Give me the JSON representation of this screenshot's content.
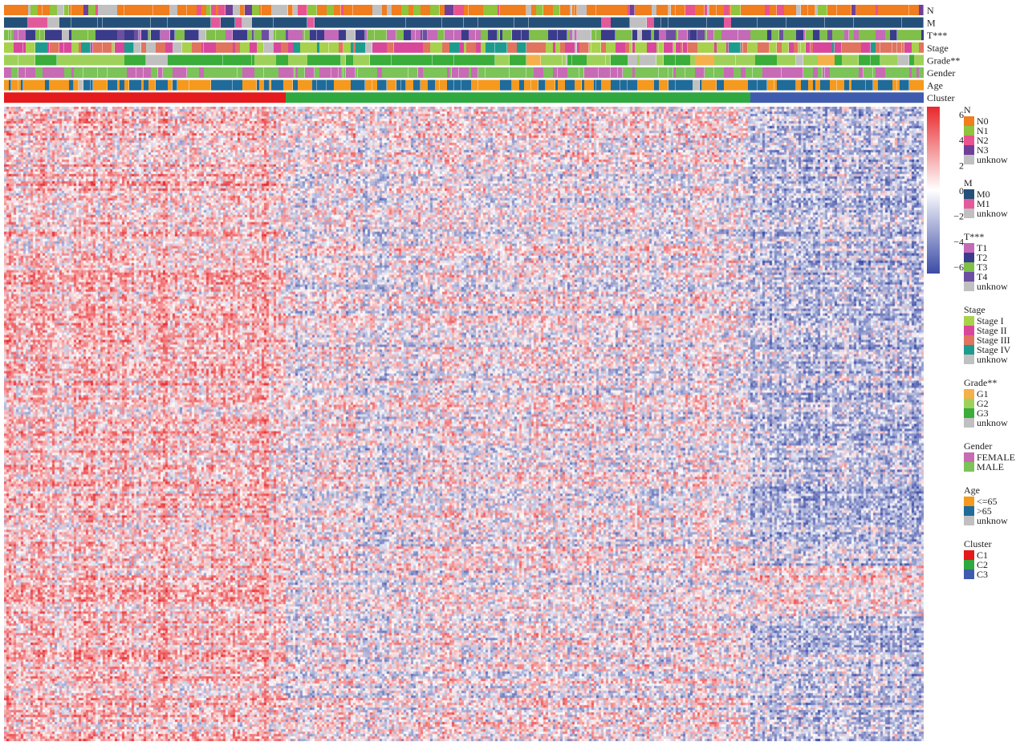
{
  "chart_data": {
    "type": "heatmap",
    "title": "",
    "xlabel": "",
    "ylabel": "",
    "color_scale": {
      "min": -6,
      "max": 6,
      "ticks": [
        "6",
        "4",
        "2",
        "0",
        "−2",
        "−4",
        "−6"
      ],
      "tick_values": [
        6,
        4,
        2,
        0,
        -2,
        -4,
        -6
      ],
      "low_color": "#3b4ba6",
      "mid_color": "#ffffff",
      "high_color": "#e8282b"
    },
    "annotation_tracks": [
      {
        "label": "N",
        "key": "N"
      },
      {
        "label": "M",
        "key": "M"
      },
      {
        "label": "T***",
        "key": "T"
      },
      {
        "label": "Stage",
        "key": "Stage"
      },
      {
        "label": "Grade**",
        "key": "Grade"
      },
      {
        "label": "Gender",
        "key": "Gender"
      },
      {
        "label": "Age",
        "key": "Age"
      },
      {
        "label": "Cluster",
        "key": "Cluster"
      }
    ],
    "cluster_fractions": {
      "C1": 0.307,
      "C2": 0.504,
      "C3": 0.189
    },
    "legend": [
      {
        "title": "N",
        "items": [
          {
            "label": "N0",
            "color": "#f07d1e"
          },
          {
            "label": "N1",
            "color": "#8fc43d"
          },
          {
            "label": "N2",
            "color": "#e8538f"
          },
          {
            "label": "N3",
            "color": "#6f3f98"
          },
          {
            "label": "unknow",
            "color": "#c0c0c0"
          }
        ]
      },
      {
        "title": "M",
        "items": [
          {
            "label": "M0",
            "color": "#244f79"
          },
          {
            "label": "M1",
            "color": "#e35a9b"
          },
          {
            "label": "unknow",
            "color": "#c0c0c0"
          }
        ]
      },
      {
        "title": "T***",
        "items": [
          {
            "label": "T1",
            "color": "#c46ab8"
          },
          {
            "label": "T2",
            "color": "#3b3b8c"
          },
          {
            "label": "T3",
            "color": "#7fbf4a"
          },
          {
            "label": "T4",
            "color": "#6c4fa0"
          },
          {
            "label": "unknow",
            "color": "#c0c0c0"
          }
        ]
      },
      {
        "title": "Stage",
        "items": [
          {
            "label": "Stage I",
            "color": "#a8d14c"
          },
          {
            "label": "Stage II",
            "color": "#d9479a"
          },
          {
            "label": "Stage III",
            "color": "#e0745e"
          },
          {
            "label": "Stage IV",
            "color": "#1f9b8e"
          },
          {
            "label": "unknow",
            "color": "#c0c0c0"
          }
        ]
      },
      {
        "title": "Grade**",
        "items": [
          {
            "label": "G1",
            "color": "#f4b04a"
          },
          {
            "label": "G2",
            "color": "#9fd15a"
          },
          {
            "label": "G3",
            "color": "#3aad3a"
          },
          {
            "label": "unknow",
            "color": "#c0c0c0"
          }
        ]
      },
      {
        "title": "Gender",
        "items": [
          {
            "label": "FEMALE",
            "color": "#c86bb5"
          },
          {
            "label": "MALE",
            "color": "#7cc35a"
          }
        ]
      },
      {
        "title": "Age",
        "items": [
          {
            "label": "<=65",
            "color": "#f59a1e"
          },
          {
            "label": ">65",
            "color": "#1f6b9a"
          },
          {
            "label": "unknow",
            "color": "#c0c0c0"
          }
        ]
      },
      {
        "title": "Cluster",
        "items": [
          {
            "label": "C1",
            "color": "#e41a1c"
          },
          {
            "label": "C2",
            "color": "#2fa840"
          },
          {
            "label": "C3",
            "color": "#3f5bae"
          }
        ]
      }
    ]
  }
}
